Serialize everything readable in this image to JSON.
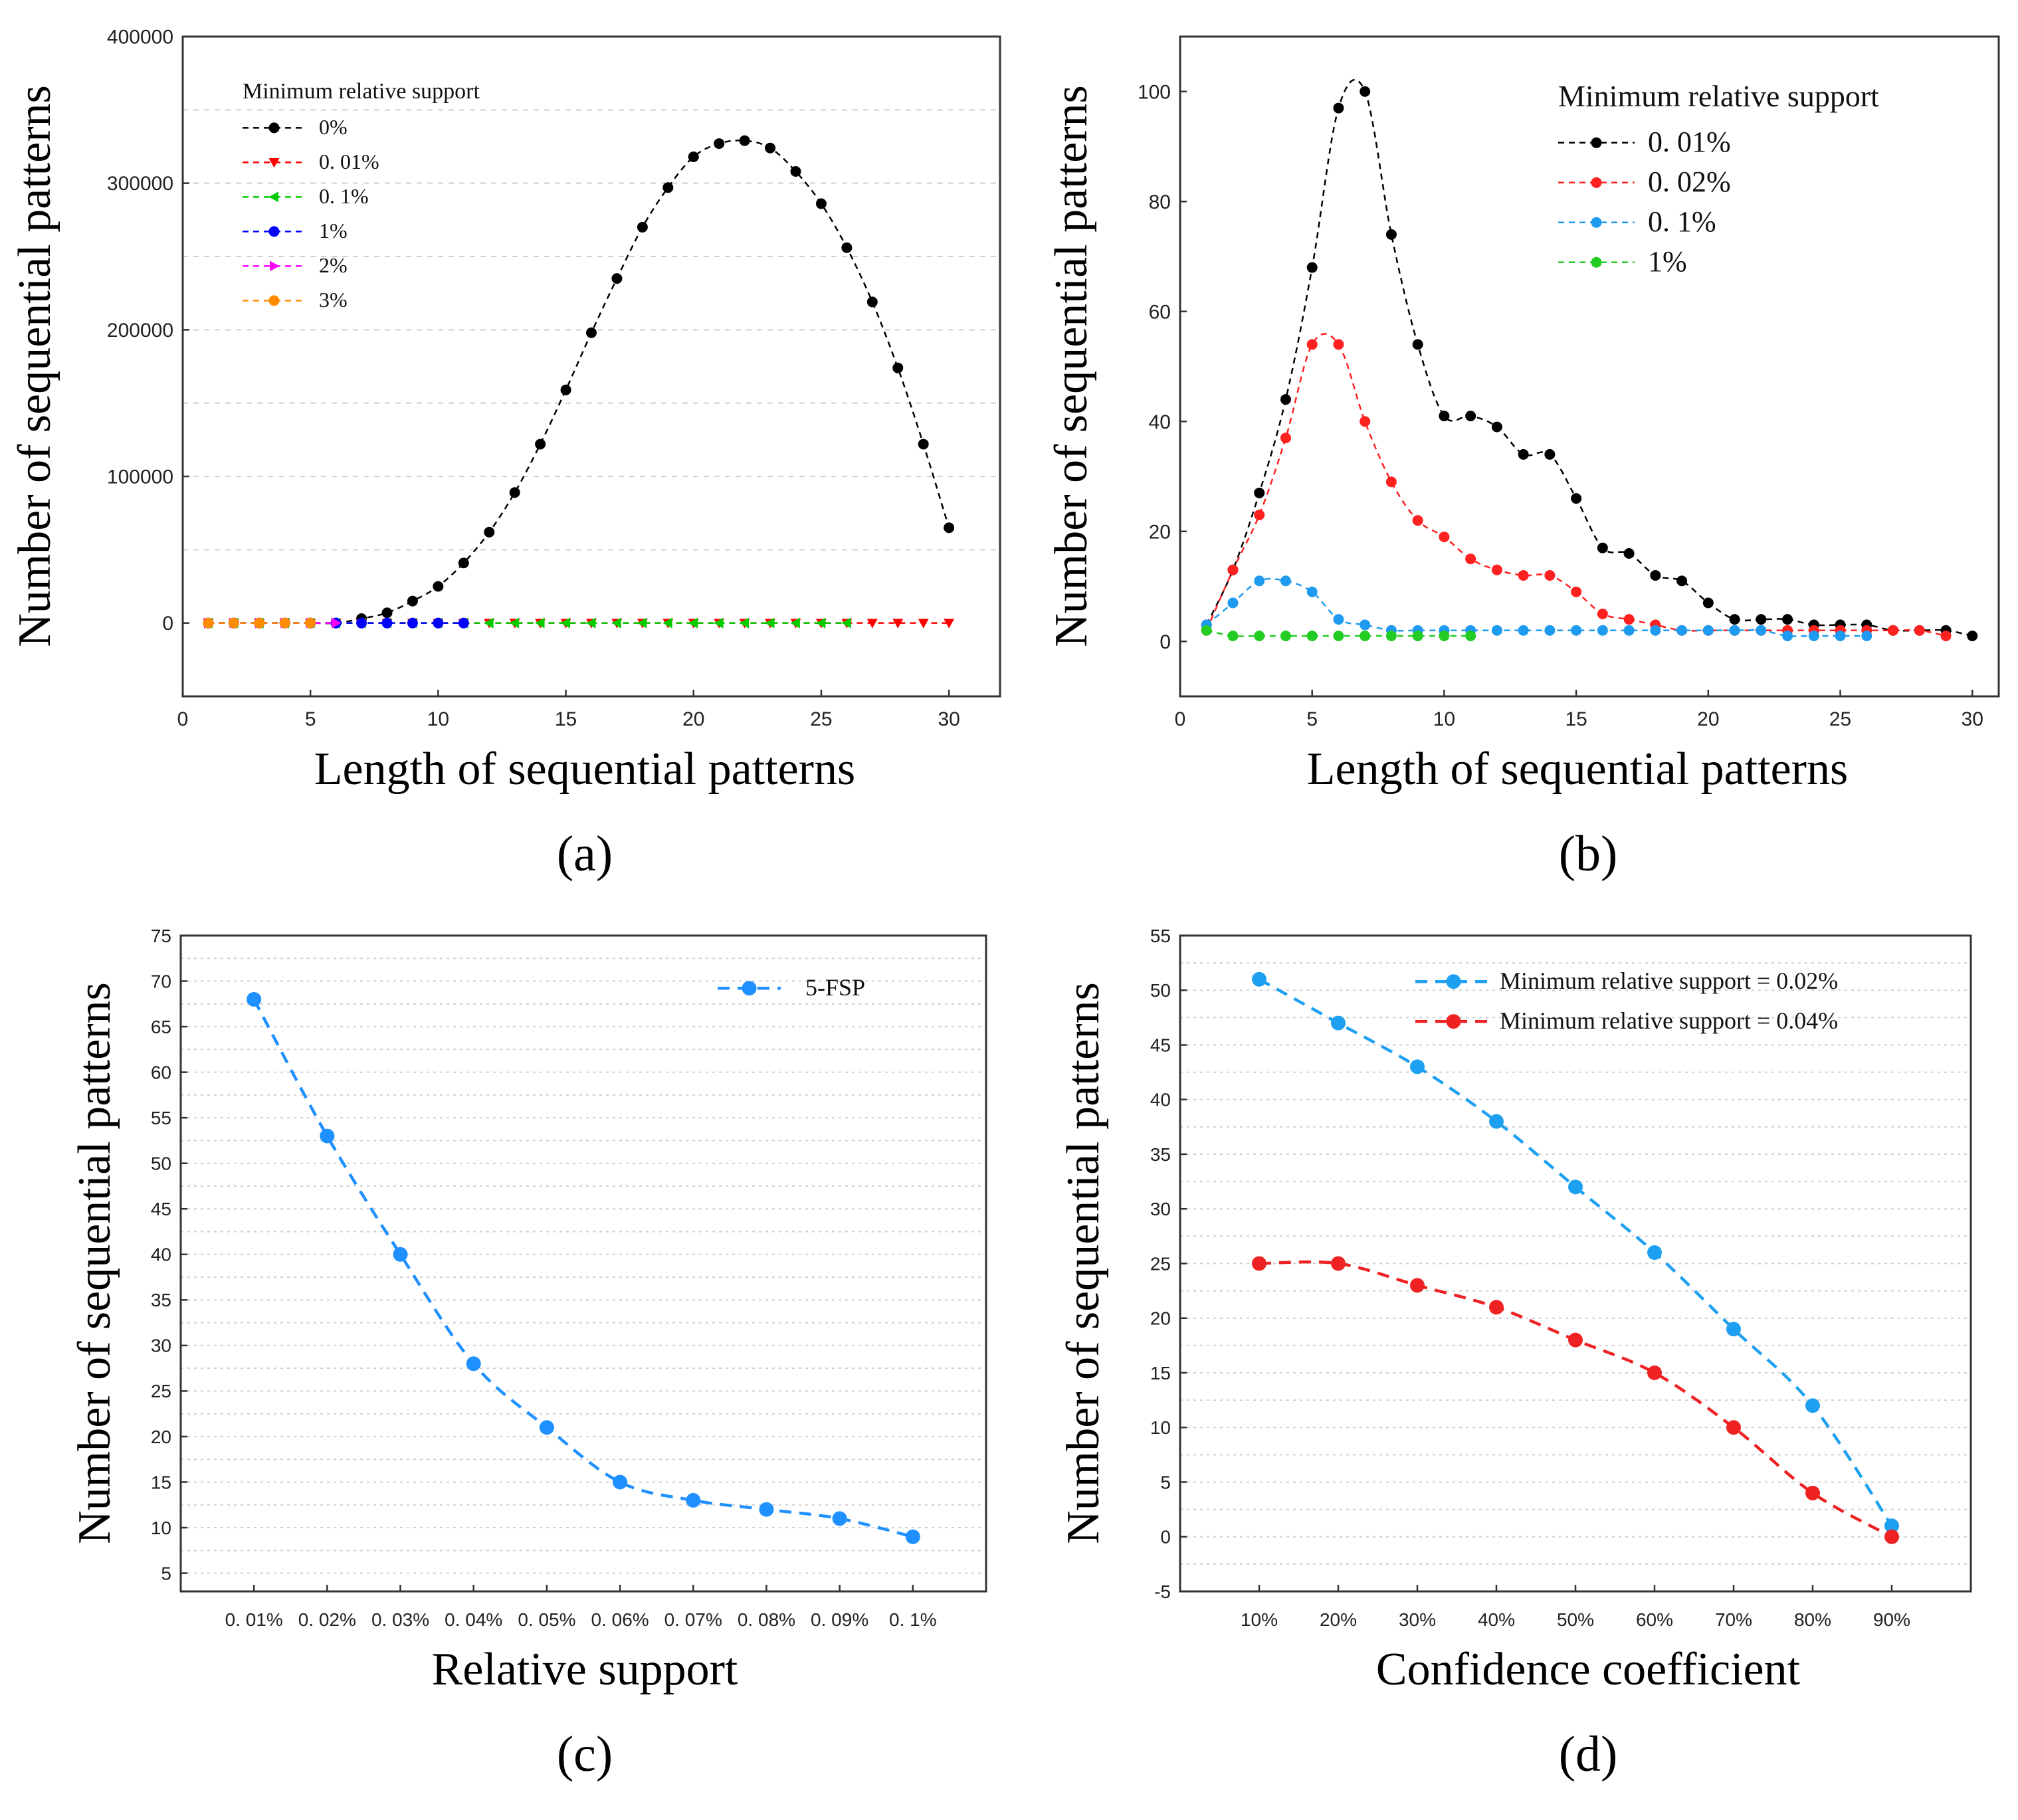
{
  "chart_data": [
    {
      "id": "a",
      "type": "line",
      "panel_label": "(a)",
      "xlabel": "Length of sequential patterns",
      "ylabel": "Number of sequential patterns",
      "xlim": [
        0,
        32
      ],
      "ylim": [
        -50000,
        400000
      ],
      "xticks": [
        0,
        5,
        10,
        15,
        20,
        25,
        30
      ],
      "xtick_labels": [
        "0",
        "5",
        "10",
        "15",
        "20",
        "25",
        "30"
      ],
      "yticks": [
        0,
        100000,
        200000,
        300000,
        400000
      ],
      "ytick_labels": [
        "0",
        "100000",
        "200000",
        "300000",
        "400000"
      ],
      "grid": "horizontal dashed",
      "legend_title": "Minimum relative support",
      "legend_position": "top-left",
      "series": [
        {
          "name": "0%",
          "color": "#000000",
          "marker": "circle",
          "x": [
            1,
            2,
            3,
            4,
            5,
            6,
            7,
            8,
            9,
            10,
            11,
            12,
            13,
            14,
            15,
            16,
            17,
            18,
            19,
            20,
            21,
            22,
            23,
            24,
            25,
            26,
            27,
            28,
            29,
            30
          ],
          "y": [
            0,
            0,
            0,
            0,
            0,
            0,
            3000,
            7000,
            15000,
            25000,
            41000,
            62000,
            89000,
            122000,
            159000,
            198000,
            235000,
            270000,
            297000,
            318000,
            327000,
            329000,
            324000,
            308000,
            286000,
            256000,
            219000,
            174000,
            122000,
            65000
          ]
        },
        {
          "name": "0. 01%",
          "color": "#ff0000",
          "marker": "triangle-down",
          "x": [
            1,
            2,
            3,
            4,
            5,
            6,
            7,
            8,
            9,
            10,
            11,
            12,
            13,
            14,
            15,
            16,
            17,
            18,
            19,
            20,
            21,
            22,
            23,
            24,
            25,
            26,
            27,
            28,
            29,
            30
          ],
          "y": [
            0,
            0,
            0,
            0,
            0,
            0,
            0,
            0,
            0,
            0,
            0,
            0,
            0,
            0,
            0,
            0,
            0,
            0,
            0,
            0,
            0,
            0,
            0,
            0,
            0,
            0,
            0,
            0,
            0,
            0
          ]
        },
        {
          "name": "0. 1%",
          "color": "#00cc00",
          "marker": "triangle-left",
          "x": [
            1,
            2,
            3,
            4,
            5,
            6,
            7,
            8,
            9,
            10,
            11,
            12,
            13,
            14,
            15,
            16,
            17,
            18,
            19,
            20,
            21,
            22,
            23,
            24,
            25,
            26
          ],
          "y": [
            0,
            0,
            0,
            0,
            0,
            0,
            0,
            0,
            0,
            0,
            0,
            0,
            0,
            0,
            0,
            0,
            0,
            0,
            0,
            0,
            0,
            0,
            0,
            0,
            0,
            0
          ]
        },
        {
          "name": "1%",
          "color": "#0000ff",
          "marker": "circle",
          "x": [
            1,
            2,
            3,
            4,
            5,
            6,
            7,
            8,
            9,
            10,
            11
          ],
          "y": [
            0,
            0,
            0,
            0,
            0,
            0,
            0,
            0,
            0,
            0,
            0
          ]
        },
        {
          "name": "2%",
          "color": "#ff00ff",
          "marker": "triangle-right",
          "x": [
            1,
            2,
            3,
            4,
            5,
            6
          ],
          "y": [
            0,
            0,
            0,
            0,
            0,
            0
          ]
        },
        {
          "name": "3%",
          "color": "#ff8c00",
          "marker": "circle",
          "x": [
            1,
            2,
            3,
            4,
            5
          ],
          "y": [
            0,
            0,
            0,
            0,
            0
          ]
        }
      ]
    },
    {
      "id": "b",
      "type": "line",
      "panel_label": "(b)",
      "xlabel": "Length of sequential patterns",
      "ylabel": "Number of sequential patterns",
      "xlim": [
        0,
        31
      ],
      "ylim": [
        -10,
        110
      ],
      "xticks": [
        0,
        5,
        10,
        15,
        20,
        25,
        30
      ],
      "xtick_labels": [
        "0",
        "5",
        "10",
        "15",
        "20",
        "25",
        "30"
      ],
      "yticks": [
        0,
        20,
        40,
        60,
        80,
        100
      ],
      "ytick_labels": [
        "0",
        "20",
        "40",
        "60",
        "80",
        "100"
      ],
      "grid": "none",
      "legend_title": "Minimum relative support",
      "legend_position": "top-right",
      "series": [
        {
          "name": "0. 01%",
          "color": "#000000",
          "marker": "circle",
          "x": [
            1,
            2,
            3,
            4,
            5,
            6,
            7,
            8,
            9,
            10,
            11,
            12,
            13,
            14,
            15,
            16,
            17,
            18,
            19,
            20,
            21,
            22,
            23,
            24,
            25,
            26,
            27,
            28,
            29,
            30
          ],
          "y": [
            3,
            13,
            27,
            44,
            68,
            97,
            100,
            74,
            54,
            41,
            41,
            39,
            34,
            34,
            26,
            17,
            16,
            12,
            11,
            7,
            4,
            4,
            4,
            3,
            3,
            3,
            2,
            2,
            2,
            1
          ]
        },
        {
          "name": "0. 02%",
          "color": "#ff2020",
          "marker": "circle",
          "x": [
            1,
            2,
            3,
            4,
            5,
            6,
            7,
            8,
            9,
            10,
            11,
            12,
            13,
            14,
            15,
            16,
            17,
            18,
            19,
            20,
            21,
            22,
            23,
            24,
            25,
            26,
            27,
            28,
            29
          ],
          "y": [
            2,
            13,
            23,
            37,
            54,
            54,
            40,
            29,
            22,
            19,
            15,
            13,
            12,
            12,
            9,
            5,
            4,
            3,
            2,
            2,
            2,
            2,
            2,
            2,
            2,
            2,
            2,
            2,
            1
          ]
        },
        {
          "name": "0. 1%",
          "color": "#1e9bf0",
          "marker": "circle",
          "x": [
            1,
            2,
            3,
            4,
            5,
            6,
            7,
            8,
            9,
            10,
            11,
            12,
            13,
            14,
            15,
            16,
            17,
            18,
            19,
            20,
            21,
            22,
            23,
            24,
            25,
            26
          ],
          "y": [
            3,
            7,
            11,
            11,
            9,
            4,
            3,
            2,
            2,
            2,
            2,
            2,
            2,
            2,
            2,
            2,
            2,
            2,
            2,
            2,
            2,
            2,
            1,
            1,
            1,
            1
          ]
        },
        {
          "name": "1%",
          "color": "#22cc22",
          "marker": "circle",
          "x": [
            1,
            2,
            3,
            4,
            5,
            6,
            7,
            8,
            9,
            10,
            11
          ],
          "y": [
            2,
            1,
            1,
            1,
            1,
            1,
            1,
            1,
            1,
            1,
            1
          ]
        }
      ]
    },
    {
      "id": "c",
      "type": "line",
      "panel_label": "(c)",
      "xlabel": "Relative support",
      "ylabel": "Number of sequential patterns",
      "categories": [
        "0. 01%",
        "0. 02%",
        "0. 03%",
        "0. 04%",
        "0. 05%",
        "0. 06%",
        "0. 07%",
        "0. 08%",
        "0. 09%",
        "0. 1%"
      ],
      "ylim": [
        3,
        75
      ],
      "yticks": [
        5,
        10,
        15,
        20,
        25,
        30,
        35,
        40,
        45,
        50,
        55,
        60,
        65,
        70,
        75
      ],
      "ytick_labels": [
        "5",
        "10",
        "15",
        "20",
        "25",
        "30",
        "35",
        "40",
        "45",
        "50",
        "55",
        "60",
        "65",
        "70",
        "75"
      ],
      "grid": "horizontal dotted",
      "legend_position": "top-right",
      "series": [
        {
          "name": "5-FSP",
          "color": "#1e90ff",
          "marker": "circle",
          "values": [
            68,
            53,
            40,
            28,
            21,
            15,
            13,
            12,
            11,
            9
          ]
        }
      ]
    },
    {
      "id": "d",
      "type": "line",
      "panel_label": "(d)",
      "xlabel": "Confidence coefficient",
      "ylabel": "Number of sequential patterns",
      "categories": [
        "10%",
        "20%",
        "30%",
        "40%",
        "50%",
        "60%",
        "70%",
        "80%",
        "90%"
      ],
      "ylim": [
        -5,
        55
      ],
      "yticks": [
        -5,
        0,
        5,
        10,
        15,
        20,
        25,
        30,
        35,
        40,
        45,
        50,
        55
      ],
      "ytick_labels": [
        "-5",
        "0",
        "5",
        "10",
        "15",
        "20",
        "25",
        "30",
        "35",
        "40",
        "45",
        "50",
        "55"
      ],
      "grid": "horizontal dotted",
      "legend_position": "top-right",
      "series": [
        {
          "name": "Minimum relative support = 0.02%",
          "color": "#1ea0f0",
          "marker": "circle",
          "values": [
            51,
            47,
            43,
            38,
            32,
            26,
            19,
            12,
            1
          ]
        },
        {
          "name": "Minimum relative support = 0.04%",
          "color": "#ee2222",
          "marker": "circle",
          "values": [
            25,
            25,
            23,
            21,
            18,
            15,
            10,
            4,
            0
          ]
        }
      ]
    }
  ]
}
